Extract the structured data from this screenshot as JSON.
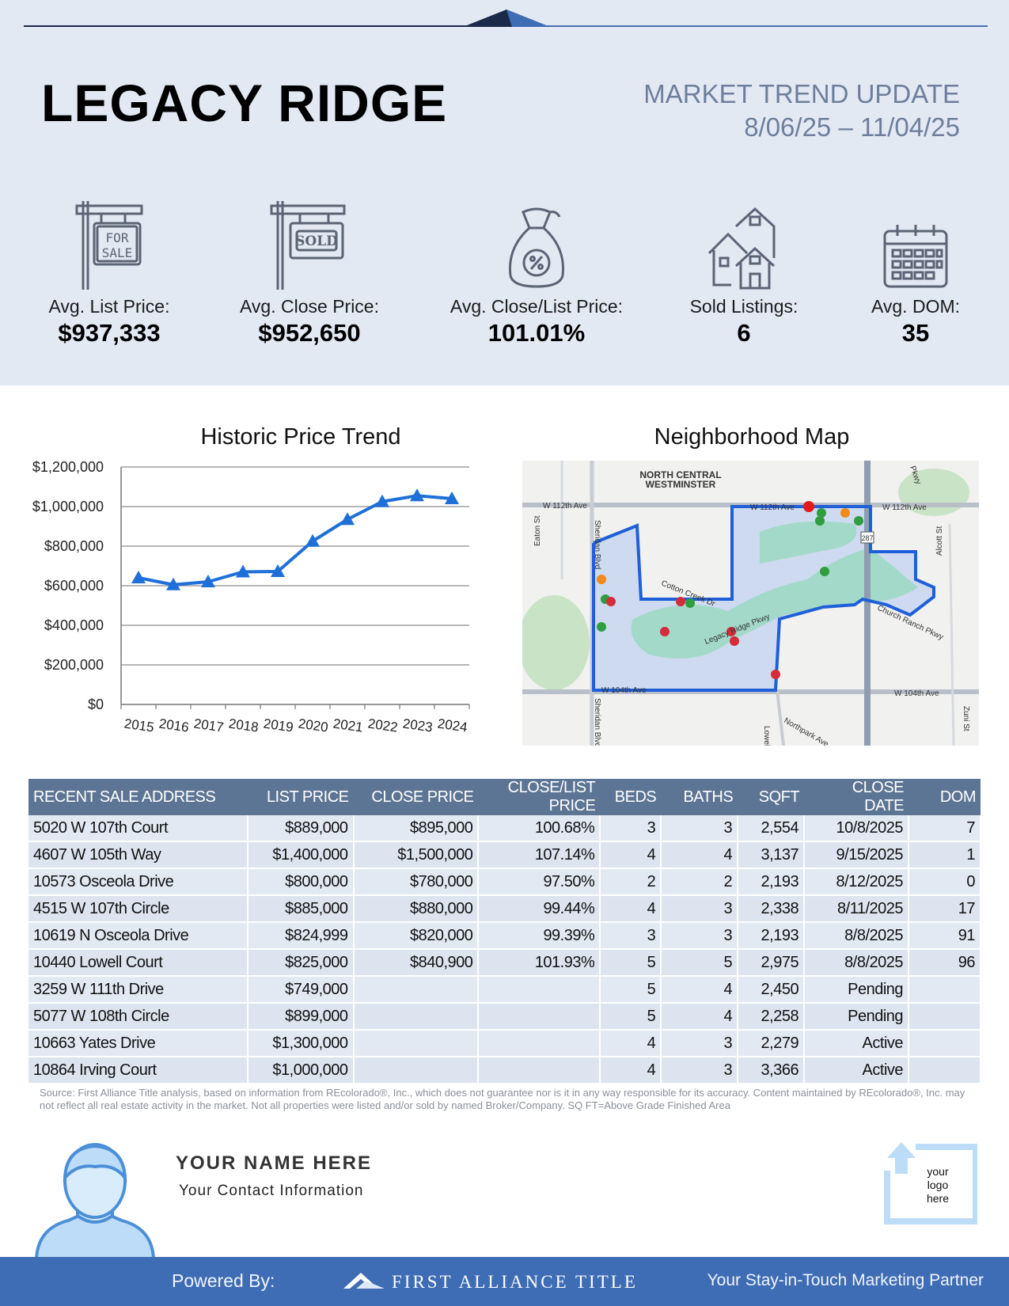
{
  "header": {
    "title": "LEGACY RIDGE",
    "report_title": "MARKET TREND UPDATE",
    "date_range": "8/06/25 – 11/04/25"
  },
  "stats": [
    {
      "label": "Avg. List Price:",
      "value": "$937,333",
      "icon": "for-sale-sign-icon",
      "sign_text": "FOR SALE"
    },
    {
      "label": "Avg. Close Price:",
      "value": "$952,650",
      "icon": "sold-sign-icon",
      "sign_text": "SOLD"
    },
    {
      "label": "Avg. Close/List Price:",
      "value": "101.01%",
      "icon": "money-bag-percent-icon"
    },
    {
      "label": "Sold Listings:",
      "value": "6",
      "icon": "houses-icon"
    },
    {
      "label": "Avg. DOM:",
      "value": "35",
      "icon": "calendar-icon"
    }
  ],
  "chart_title": "Historic Price Trend",
  "map_title": "Neighborhood Map",
  "chart_data": {
    "type": "line",
    "title": "Historic Price Trend",
    "xlabel": "",
    "ylabel": "",
    "categories": [
      "2015",
      "2016",
      "2017",
      "2018",
      "2019",
      "2020",
      "2021",
      "2022",
      "2023",
      "2024"
    ],
    "values": [
      640000,
      605000,
      620000,
      670000,
      672000,
      825000,
      935000,
      1025000,
      1055000,
      1040000
    ],
    "ylim": [
      0,
      1200000
    ],
    "yticks": [
      "$0",
      "$200,000",
      "$400,000",
      "$600,000",
      "$800,000",
      "$1,000,000",
      "$1,200,000"
    ],
    "ytick_values": [
      0,
      200000,
      400000,
      600000,
      800000,
      1000000,
      1200000
    ],
    "grid": true,
    "color": "#1f6fd8"
  },
  "map": {
    "labels": {
      "area": "NORTH CENTRAL",
      "area2": "WESTMINSTER",
      "w112": "W 112th Ave",
      "w112b": "W 112th Ave",
      "w112c": "W 112th Ave",
      "w104": "W 104th Ave",
      "w104b": "W 104th Ave",
      "cotton": "Cotton Creek Dr",
      "legacy": "Legacy Ridge Pkwy",
      "eaton": "Eaton St",
      "sheridan": "Sheridan Blvd",
      "sheridan2": "Sheridan Blvd",
      "lowell": "Lowell",
      "northpark": "Northpark Ave",
      "alcott": "Alcott St",
      "zuni": "Zuni St",
      "church": "Church Ranch Pkwy",
      "pkwy": "Pkwy",
      "route": "287"
    }
  },
  "table": {
    "headers": [
      "RECENT SALE ADDRESS",
      "LIST PRICE",
      "CLOSE PRICE",
      "CLOSE/LIST PRICE",
      "BEDS",
      "BATHS",
      "SQFT",
      "CLOSE DATE",
      "DOM"
    ],
    "rows": [
      [
        "5020 W 107th Court",
        "$889,000",
        "$895,000",
        "100.68%",
        "3",
        "3",
        "2,554",
        "10/8/2025",
        "7"
      ],
      [
        "4607 W 105th Way",
        "$1,400,000",
        "$1,500,000",
        "107.14%",
        "4",
        "4",
        "3,137",
        "9/15/2025",
        "1"
      ],
      [
        "10573 Osceola Drive",
        "$800,000",
        "$780,000",
        "97.50%",
        "2",
        "2",
        "2,193",
        "8/12/2025",
        "0"
      ],
      [
        "4515 W 107th Circle",
        "$885,000",
        "$880,000",
        "99.44%",
        "4",
        "3",
        "2,338",
        "8/11/2025",
        "17"
      ],
      [
        "10619 N Osceola Drive",
        "$824,999",
        "$820,000",
        "99.39%",
        "3",
        "3",
        "2,193",
        "8/8/2025",
        "91"
      ],
      [
        "10440 Lowell Court",
        "$825,000",
        "$840,900",
        "101.93%",
        "5",
        "5",
        "2,975",
        "8/8/2025",
        "96"
      ],
      [
        "3259 W 111th Drive",
        "$749,000",
        "",
        "",
        "5",
        "4",
        "2,450",
        "Pending",
        ""
      ],
      [
        "5077 W 108th Circle",
        "$899,000",
        "",
        "",
        "5",
        "4",
        "2,258",
        "Pending",
        ""
      ],
      [
        "10663 Yates Drive",
        "$1,300,000",
        "",
        "",
        "4",
        "3",
        "2,279",
        "Active",
        ""
      ],
      [
        "10864 Irving Court",
        "$1,000,000",
        "",
        "",
        "4",
        "3",
        "3,366",
        "Active",
        ""
      ]
    ]
  },
  "source_note": "Source: First Alliance Title analysis, based on information from REcolorado®, Inc., which does not guarantee nor is it in any way responsible for its accuracy. Content maintained by REcolorado®, Inc. may not reflect all real estate activity in the market. Not all properties were listed and/or sold by named Broker/Company. SQ FT=Above Grade Finished Area",
  "agent": {
    "name": "YOUR NAME HERE",
    "contact": "Your Contact Information"
  },
  "logo_placeholder": "your logo here",
  "footer": {
    "powered_by": "Powered By:",
    "brand": "FIRST ALLIANCE TITLE",
    "tagline": "Your Stay-in-Touch Marketing Partner"
  },
  "colors": {
    "band": "#e3e9f3",
    "accent": "#3e6db5",
    "table_header": "#5d7594",
    "line": "#1f6fd8"
  }
}
